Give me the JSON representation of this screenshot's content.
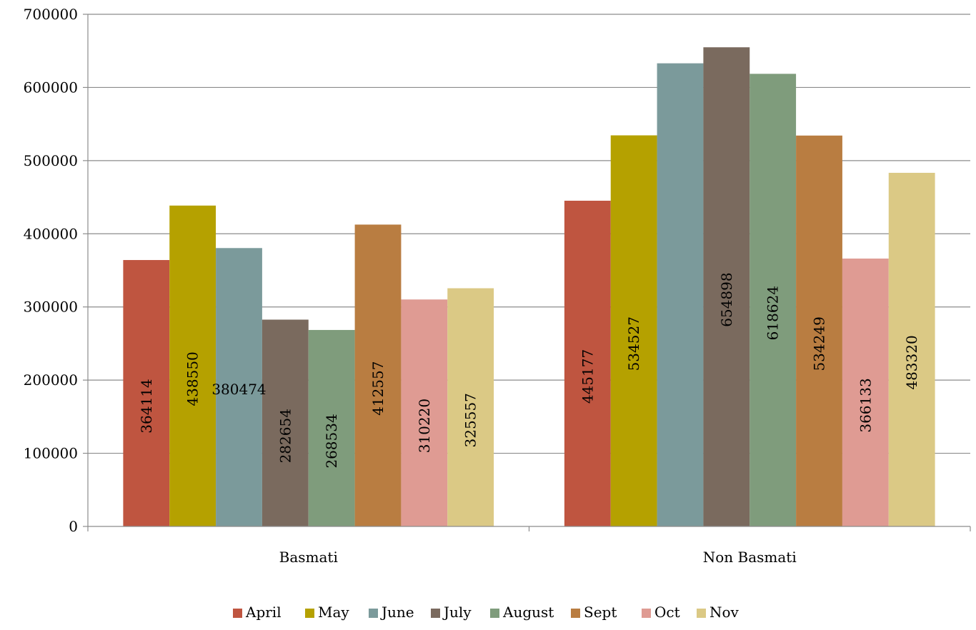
{
  "chart_data": {
    "type": "bar",
    "categories": [
      "Basmati",
      "Non Basmati"
    ],
    "series": [
      {
        "name": "April",
        "color": "#bf5540",
        "values": [
          364114,
          445177
        ]
      },
      {
        "name": "May",
        "color": "#b5a100",
        "values": [
          438550,
          534527
        ]
      },
      {
        "name": "June",
        "color": "#7b9a9b",
        "values": [
          380474,
          633000
        ]
      },
      {
        "name": "July",
        "color": "#7a6a5e",
        "values": [
          282654,
          654898
        ]
      },
      {
        "name": "August",
        "color": "#7f9c7c",
        "values": [
          268534,
          618624
        ]
      },
      {
        "name": "Sept",
        "color": "#b97d41",
        "values": [
          412557,
          534249
        ]
      },
      {
        "name": "Oct",
        "color": "#df9b93",
        "values": [
          310220,
          366133
        ]
      },
      {
        "name": "Nov",
        "color": "#dbc985",
        "values": [
          325557,
          483320
        ]
      }
    ],
    "data_labels": [
      [
        "364114",
        "445177"
      ],
      [
        "438550",
        "534527"
      ],
      [
        "380474",
        ""
      ],
      [
        "282654",
        "654898"
      ],
      [
        "268534",
        "618624"
      ],
      [
        "412557",
        "534249"
      ],
      [
        "310220",
        "366133"
      ],
      [
        "325557",
        "483320"
      ]
    ],
    "y_ticks": [
      "0",
      "100000",
      "200000",
      "300000",
      "400000",
      "500000",
      "600000",
      "700000"
    ],
    "title": "",
    "xlabel": "",
    "ylabel": "",
    "ylim": [
      0,
      700000
    ],
    "grid": true,
    "legend_position": "bottom"
  }
}
